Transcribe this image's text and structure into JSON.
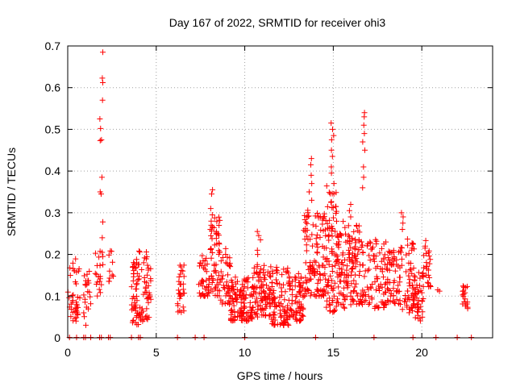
{
  "chart_data": {
    "type": "scatter",
    "title": "Day 167 of 2022, SRMTID for receiver ohi3",
    "xlabel": "GPS time / hours",
    "ylabel": "SRMTID / TECUs",
    "xlim": [
      0,
      24
    ],
    "ylim": [
      0,
      0.7
    ],
    "x_ticks": [
      0,
      5,
      10,
      15,
      20
    ],
    "y_ticks": [
      0,
      0.1,
      0.2,
      0.3,
      0.4,
      0.5,
      0.6,
      0.7
    ],
    "x_tick_labels": [
      "0",
      "5",
      "10",
      "15",
      "20"
    ],
    "y_tick_labels": [
      "0",
      "0.1",
      "0.2",
      "0.3",
      "0.4",
      "0.5",
      "0.6",
      "0.7"
    ],
    "grid": true,
    "marker": "plus",
    "color": "#ff0000",
    "clusters": [
      {
        "x": [
          0.0,
          0.7
        ],
        "ymin": 0.04,
        "ymax": 0.19,
        "n": 40
      },
      {
        "x": [
          0.9,
          1.3
        ],
        "ymin": 0.03,
        "ymax": 0.16,
        "n": 22
      },
      {
        "x": [
          1.5,
          2.0
        ],
        "ymin": 0.1,
        "ymax": 0.22,
        "n": 18
      },
      {
        "x": [
          2.3,
          2.6
        ],
        "ymin": 0.13,
        "ymax": 0.21,
        "n": 10
      },
      {
        "x": [
          3.6,
          4.0
        ],
        "ymin": 0.03,
        "ymax": 0.19,
        "n": 45
      },
      {
        "x": [
          4.0,
          4.7
        ],
        "ymin": 0.04,
        "ymax": 0.21,
        "n": 55
      },
      {
        "x": [
          6.2,
          6.6
        ],
        "ymin": 0.06,
        "ymax": 0.18,
        "n": 30
      },
      {
        "x": [
          7.4,
          8.0
        ],
        "ymin": 0.1,
        "ymax": 0.2,
        "n": 40
      },
      {
        "x": [
          8.0,
          8.6
        ],
        "ymin": 0.1,
        "ymax": 0.29,
        "n": 55
      },
      {
        "x": [
          8.6,
          9.2
        ],
        "ymin": 0.08,
        "ymax": 0.22,
        "n": 40
      },
      {
        "x": [
          9.2,
          10.5
        ],
        "ymin": 0.04,
        "ymax": 0.15,
        "n": 120
      },
      {
        "x": [
          10.5,
          11.5
        ],
        "ymin": 0.05,
        "ymax": 0.18,
        "n": 90
      },
      {
        "x": [
          11.5,
          12.6
        ],
        "ymin": 0.03,
        "ymax": 0.17,
        "n": 100
      },
      {
        "x": [
          12.6,
          13.3
        ],
        "ymin": 0.04,
        "ymax": 0.16,
        "n": 60
      },
      {
        "x": [
          13.3,
          14.0
        ],
        "ymin": 0.1,
        "ymax": 0.33,
        "n": 60
      },
      {
        "x": [
          14.0,
          14.6
        ],
        "ymin": 0.1,
        "ymax": 0.3,
        "n": 60
      },
      {
        "x": [
          14.6,
          15.2
        ],
        "ymin": 0.06,
        "ymax": 0.37,
        "n": 75
      },
      {
        "x": [
          15.2,
          16.0
        ],
        "ymin": 0.07,
        "ymax": 0.28,
        "n": 80
      },
      {
        "x": [
          16.0,
          16.6
        ],
        "ymin": 0.08,
        "ymax": 0.27,
        "n": 60
      },
      {
        "x": [
          16.6,
          17.3
        ],
        "ymin": 0.08,
        "ymax": 0.23,
        "n": 40
      },
      {
        "x": [
          17.3,
          18.0
        ],
        "ymin": 0.07,
        "ymax": 0.24,
        "n": 50
      },
      {
        "x": [
          18.0,
          18.8
        ],
        "ymin": 0.08,
        "ymax": 0.21,
        "n": 60
      },
      {
        "x": [
          18.8,
          19.6
        ],
        "ymin": 0.06,
        "ymax": 0.25,
        "n": 60
      },
      {
        "x": [
          19.6,
          20.1
        ],
        "ymin": 0.04,
        "ymax": 0.16,
        "n": 40
      },
      {
        "x": [
          20.1,
          20.5
        ],
        "ymin": 0.12,
        "ymax": 0.24,
        "n": 25
      },
      {
        "x": [
          22.3,
          22.6
        ],
        "ymin": 0.07,
        "ymax": 0.13,
        "n": 20
      }
    ],
    "spikes": [
      {
        "x": 1.9,
        "values": [
          0.685,
          0.623,
          0.612,
          0.57,
          0.525,
          0.502,
          0.475,
          0.473,
          0.385,
          0.35,
          0.345,
          0.278,
          0.24,
          0.205,
          0.195
        ]
      },
      {
        "x": 8.1,
        "values": [
          0.355,
          0.345,
          0.31,
          0.295,
          0.28,
          0.27,
          0.26
        ]
      },
      {
        "x": 10.8,
        "values": [
          0.255,
          0.245,
          0.235,
          0.21,
          0.2
        ]
      },
      {
        "x": 13.7,
        "values": [
          0.43,
          0.415,
          0.39,
          0.37,
          0.35,
          0.33
        ]
      },
      {
        "x": 14.95,
        "values": [
          0.515,
          0.5,
          0.485,
          0.475,
          0.45,
          0.435,
          0.41,
          0.395,
          0.37
        ]
      },
      {
        "x": 16.7,
        "values": [
          0.54,
          0.53,
          0.51,
          0.49,
          0.47,
          0.45,
          0.41,
          0.385,
          0.36
        ]
      },
      {
        "x": 15.9,
        "values": [
          0.32,
          0.305,
          0.29
        ]
      },
      {
        "x": 18.9,
        "values": [
          0.3,
          0.29,
          0.275,
          0.26
        ]
      }
    ],
    "isolated": [
      {
        "x": 20.9,
        "y": 0.115
      },
      {
        "x": 21.0,
        "y": 0.112
      }
    ],
    "zero_points_x": [
      0.1,
      0.5,
      0.9,
      1.0,
      1.3,
      1.8,
      1.9,
      2.3,
      2.4,
      3.6,
      4.0,
      4.1,
      6.2,
      7.2,
      7.7,
      10.0,
      14.0,
      17.3,
      19.5,
      20.8,
      22.0,
      22.8
    ]
  }
}
